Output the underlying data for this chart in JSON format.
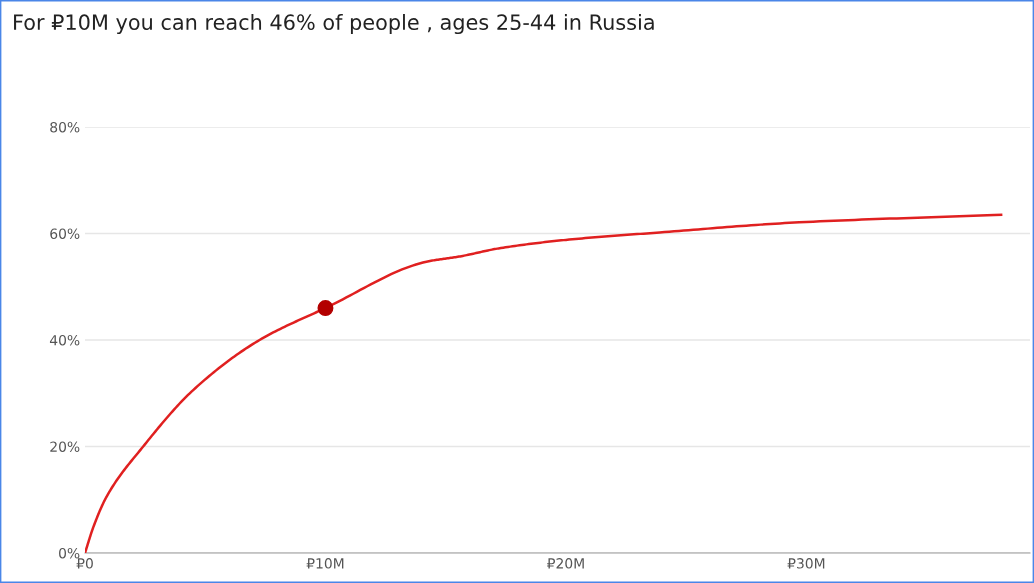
{
  "chart_data": {
    "type": "line",
    "title": "For ₽10M you can reach 46% of people , ages 25-44 in Russia",
    "x": [
      0,
      0.35,
      0.9,
      2.42,
      4.5,
      7.26,
      10,
      14.2,
      15.6,
      17.2,
      20,
      23.9,
      29.7,
      38.1
    ],
    "series": [
      {
        "color": "#e02020",
        "values": [
          0,
          4.9,
          10.6,
          20,
          30.6,
          40,
          46,
          54.7,
          55.7,
          57.2,
          58.8,
          60.2,
          62.1,
          63.5
        ]
      },
      {
        "type": "scatter",
        "color": "#b30000",
        "x": [
          10
        ],
        "values": [
          46
        ],
        "marker": "circle"
      }
    ],
    "xlim": [
      0,
      39.3
    ],
    "ylim": [
      0,
      80
    ],
    "xticks": [
      {
        "value": 0,
        "label": "₽0"
      },
      {
        "value": 10,
        "label": "₽10M"
      },
      {
        "value": 20,
        "label": "₽20M"
      },
      {
        "value": 30,
        "label": "₽30M"
      }
    ],
    "yticks": [
      {
        "value": 0,
        "label": "0%"
      },
      {
        "value": 20,
        "label": "20%"
      },
      {
        "value": 40,
        "label": "40%"
      },
      {
        "value": 60,
        "label": "60%"
      },
      {
        "value": 80,
        "label": "80%"
      }
    ],
    "grid": "y",
    "marker": "none",
    "line_style": "solid"
  }
}
